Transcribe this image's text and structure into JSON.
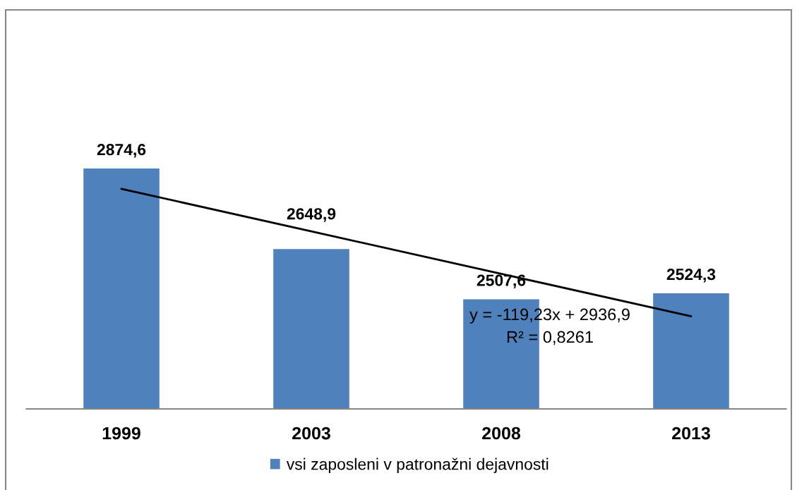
{
  "chart_data": {
    "type": "bar",
    "categories": [
      "1999",
      "2003",
      "2008",
      "2013"
    ],
    "series": [
      {
        "name": "vsi zaposleni v patronažni dejavnosti",
        "color": "#4f81bd",
        "values": [
          2874.6,
          2648.9,
          2507.6,
          2524.3
        ],
        "value_labels": [
          "2874,6",
          "2648,9",
          "2507,6",
          "2524,3"
        ]
      },
      {
        "type": "line",
        "color": "#000000",
        "values": [
          2817.7,
          2698.4,
          2579.2,
          2460.0
        ]
      }
    ],
    "ylim": [
      2200,
      3320
    ],
    "tick_labels": "x",
    "legend": "bottom",
    "grid": false,
    "annotations": [
      "y = -119,23x + 2936,9",
      "R² = 0,8261"
    ]
  }
}
